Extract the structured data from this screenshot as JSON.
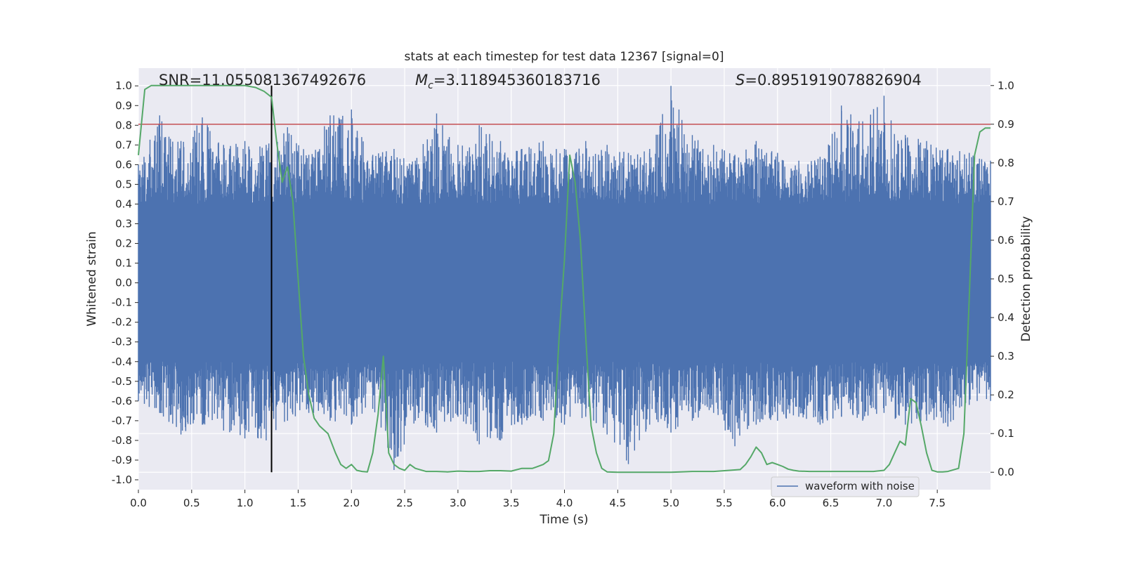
{
  "chart_data": {
    "type": "line",
    "title": "stats at each timestep for test data 12367 [signal=0]",
    "xlabel": "Time (s)",
    "ylabel_left": "Whitened strain",
    "ylabel_right": "Detection probability",
    "xlim": [
      0.0,
      8.0
    ],
    "ylim_left": [
      -1.05,
      1.09
    ],
    "ylim_right": [
      -0.045,
      1.045
    ],
    "x_ticks": [
      "0.0",
      "0.5",
      "1.0",
      "1.5",
      "2.0",
      "2.5",
      "3.0",
      "3.5",
      "4.0",
      "4.5",
      "5.0",
      "5.5",
      "6.0",
      "6.5",
      "7.0",
      "7.5"
    ],
    "y_ticks_left": [
      "1.0",
      "0.9",
      "0.8",
      "0.7",
      "0.6",
      "0.5",
      "0.4",
      "0.3",
      "0.2",
      "0.1",
      "0.0",
      "-0.1",
      "-0.2",
      "-0.3",
      "-0.4",
      "-0.5",
      "-0.6",
      "-0.7",
      "-0.8",
      "-0.9",
      "-1.0"
    ],
    "y_ticks_right": [
      "1.0",
      "0.9",
      "0.8",
      "0.7",
      "0.6",
      "0.5",
      "0.4",
      "0.3",
      "0.2",
      "0.1",
      "0.0"
    ],
    "grid": true,
    "legend": {
      "position": "lower-right",
      "entries": [
        "waveform with noise"
      ]
    },
    "annotations": {
      "snr": {
        "label": "SNR",
        "value": "11.055081367492676"
      },
      "mc": {
        "value": "3.118945360183716"
      },
      "s": {
        "value": "0.8951919078826904"
      }
    },
    "threshold_line": {
      "axis": "right",
      "value": 0.9
    },
    "vertical_marker": {
      "x": 1.25,
      "y_range": [
        0.0,
        1.0
      ]
    },
    "series": [
      {
        "name": "waveform with noise",
        "axis": "left",
        "kind": "noise-envelope",
        "core_band": [
          -0.4,
          0.4
        ],
        "x": [
          0.0,
          0.2,
          0.4,
          0.6,
          0.8,
          1.0,
          1.2,
          1.4,
          1.6,
          1.8,
          2.0,
          2.2,
          2.4,
          2.6,
          2.8,
          3.0,
          3.2,
          3.4,
          3.6,
          3.8,
          4.0,
          4.2,
          4.4,
          4.6,
          4.8,
          5.0,
          5.2,
          5.4,
          5.6,
          5.8,
          6.0,
          6.2,
          6.4,
          6.6,
          6.8,
          7.0,
          7.2,
          7.4,
          7.6,
          7.8,
          8.0
        ],
        "upper": [
          0.6,
          0.85,
          0.72,
          0.84,
          0.7,
          0.72,
          0.7,
          0.79,
          0.65,
          0.85,
          0.88,
          0.65,
          0.68,
          0.62,
          0.86,
          0.7,
          0.8,
          0.72,
          0.68,
          0.72,
          0.68,
          0.72,
          0.7,
          0.66,
          0.68,
          1.0,
          0.75,
          0.7,
          0.65,
          0.72,
          0.66,
          0.62,
          0.64,
          0.9,
          0.82,
          0.95,
          0.75,
          0.72,
          0.68,
          0.66,
          0.62
        ],
        "lower": [
          -0.6,
          -0.66,
          -0.77,
          -0.72,
          -0.75,
          -0.79,
          -0.8,
          -0.7,
          -0.66,
          -0.7,
          -0.72,
          -0.64,
          -0.95,
          -0.7,
          -0.76,
          -0.68,
          -0.82,
          -0.8,
          -0.72,
          -0.7,
          -0.72,
          -0.68,
          -0.77,
          -0.92,
          -0.72,
          -0.76,
          -0.7,
          -0.66,
          -0.83,
          -0.72,
          -0.7,
          -0.68,
          -0.72,
          -0.68,
          -0.7,
          -0.66,
          -0.72,
          -0.7,
          -0.73,
          -0.62,
          -0.6
        ]
      },
      {
        "axis": "right",
        "x": [
          0.0,
          0.06,
          0.12,
          0.3,
          0.6,
          1.0,
          1.1,
          1.18,
          1.25,
          1.3,
          1.35,
          1.4,
          1.45,
          1.5,
          1.55,
          1.6,
          1.65,
          1.7,
          1.78,
          1.85,
          1.9,
          1.95,
          2.0,
          2.05,
          2.1,
          2.15,
          2.2,
          2.25,
          2.3,
          2.35,
          2.4,
          2.45,
          2.5,
          2.55,
          2.6,
          2.7,
          2.8,
          2.9,
          3.0,
          3.1,
          3.2,
          3.3,
          3.4,
          3.5,
          3.6,
          3.7,
          3.8,
          3.85,
          3.9,
          3.95,
          4.0,
          4.05,
          4.1,
          4.15,
          4.2,
          4.25,
          4.3,
          4.35,
          4.4,
          4.5,
          4.6,
          4.8,
          5.0,
          5.2,
          5.4,
          5.55,
          5.65,
          5.7,
          5.75,
          5.8,
          5.85,
          5.9,
          5.95,
          6.0,
          6.05,
          6.1,
          6.15,
          6.2,
          6.3,
          6.5,
          6.7,
          6.9,
          7.0,
          7.05,
          7.1,
          7.15,
          7.2,
          7.25,
          7.3,
          7.35,
          7.4,
          7.45,
          7.5,
          7.55,
          7.6,
          7.7,
          7.75,
          7.8,
          7.85,
          7.9,
          7.95,
          8.0
        ],
        "values": [
          0.82,
          0.99,
          1.0,
          1.0,
          1.0,
          1.0,
          0.995,
          0.985,
          0.97,
          0.85,
          0.75,
          0.79,
          0.7,
          0.5,
          0.3,
          0.2,
          0.14,
          0.12,
          0.1,
          0.05,
          0.02,
          0.01,
          0.02,
          0.005,
          0.002,
          0.001,
          0.05,
          0.15,
          0.3,
          0.05,
          0.02,
          0.01,
          0.005,
          0.02,
          0.01,
          0.002,
          0.002,
          0.001,
          0.003,
          0.002,
          0.002,
          0.004,
          0.004,
          0.003,
          0.01,
          0.01,
          0.02,
          0.03,
          0.1,
          0.35,
          0.55,
          0.82,
          0.75,
          0.6,
          0.35,
          0.12,
          0.05,
          0.01,
          0.001,
          0.0,
          0.0,
          0.0,
          0.0,
          0.002,
          0.002,
          0.005,
          0.007,
          0.02,
          0.04,
          0.065,
          0.05,
          0.02,
          0.025,
          0.02,
          0.015,
          0.008,
          0.005,
          0.003,
          0.002,
          0.002,
          0.002,
          0.002,
          0.005,
          0.02,
          0.05,
          0.08,
          0.07,
          0.19,
          0.18,
          0.12,
          0.05,
          0.005,
          0.001,
          0.001,
          0.002,
          0.01,
          0.1,
          0.45,
          0.82,
          0.88,
          0.89,
          0.89
        ]
      }
    ],
    "colors": {
      "axes_bg": "#eaeaf2",
      "grid": "#ffffff",
      "waveform": "#4c72b0",
      "probability": "#55a868",
      "threshold": "#c44e52",
      "marker": "#000000"
    }
  }
}
